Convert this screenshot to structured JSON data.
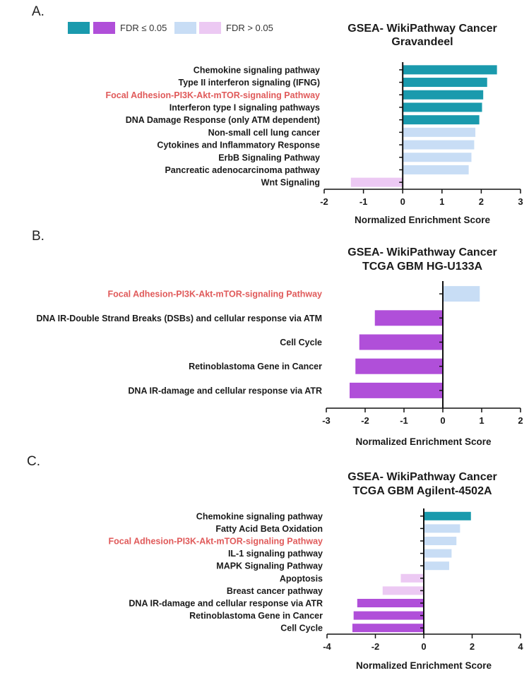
{
  "legend": {
    "sig_label": "FDR ≤ 0.05",
    "nonsig_label": "FDR > 0.05"
  },
  "colors": {
    "up_sig": "#1a9aad",
    "down_sig": "#b04fd9",
    "up_nonsig": "#c8ddf5",
    "down_nonsig": "#ecc9f3",
    "highlight_text": "#e05a5a"
  },
  "chart_data": [
    {
      "panel_letter": "A.",
      "type": "bar",
      "orientation": "horizontal",
      "title_line1": "GSEA- WikiPathway Cancer",
      "title_line2": "Gravandeel",
      "xlabel": "Normalized Enrichment Score",
      "xlim": [
        -2,
        3
      ],
      "xticks": [
        "-2",
        "-1",
        "0",
        "1",
        "2",
        "3"
      ],
      "highlight_index": 2,
      "categories": [
        "Chemokine signaling pathway",
        "Type II interferon signaling (IFNG)",
        "Focal Adhesion-PI3K-Akt-mTOR-signaling Pathway",
        "Interferon type I signaling pathways",
        "DNA Damage Response (only ATM dependent)",
        "Non-small cell lung cancer",
        "Cytokines and Inflammatory Response",
        "ErbB Signaling Pathway",
        "Pancreatic adenocarcinoma pathway",
        "Wnt Signaling"
      ],
      "values": [
        2.4,
        2.15,
        2.05,
        2.02,
        1.95,
        1.85,
        1.82,
        1.75,
        1.68,
        -1.32
      ],
      "significant": [
        true,
        true,
        true,
        true,
        true,
        false,
        false,
        false,
        false,
        false
      ]
    },
    {
      "panel_letter": "B.",
      "type": "bar",
      "orientation": "horizontal",
      "title_line1": "GSEA- WikiPathway Cancer",
      "title_line2": "TCGA GBM HG-U133A",
      "xlabel": "Normalized Enrichment Score",
      "xlim": [
        -3,
        2
      ],
      "xticks": [
        "-3",
        "-2",
        "-1",
        "0",
        "1",
        "2"
      ],
      "highlight_index": 0,
      "categories": [
        "Focal Adhesion-PI3K-Akt-mTOR-signaling Pathway",
        "DNA IR-Double Strand Breaks (DSBs) and cellular response via ATM",
        "Cell Cycle",
        "Retinoblastoma Gene in Cancer",
        "DNA IR-damage and cellular response via ATR"
      ],
      "values": [
        0.95,
        -1.75,
        -2.15,
        -2.25,
        -2.4
      ],
      "significant": [
        false,
        true,
        true,
        true,
        true
      ]
    },
    {
      "panel_letter": "C.",
      "type": "bar",
      "orientation": "horizontal",
      "title_line1": "GSEA- WikiPathway Cancer",
      "title_line2": "TCGA GBM Agilent-4502A",
      "xlabel": "Normalized Enrichment Score",
      "xlim": [
        -4,
        4
      ],
      "xticks": [
        "-4",
        "-2",
        "0",
        "2",
        "4"
      ],
      "highlight_index": 2,
      "categories": [
        "Chemokine signaling pathway",
        "Fatty Acid Beta Oxidation",
        "Focal Adhesion-PI3K-Akt-mTOR-signaling Pathway",
        "IL-1 signaling pathway",
        "MAPK Signaling Pathway",
        "Apoptosis",
        "Breast cancer pathway",
        "DNA IR-damage and cellular response via ATR",
        "Retinoblastoma Gene in Cancer",
        "Cell Cycle"
      ],
      "values": [
        1.95,
        1.5,
        1.35,
        1.15,
        1.05,
        -0.95,
        -1.7,
        -2.75,
        -2.9,
        -2.95
      ],
      "significant": [
        true,
        false,
        false,
        false,
        false,
        false,
        false,
        true,
        true,
        true
      ]
    }
  ]
}
